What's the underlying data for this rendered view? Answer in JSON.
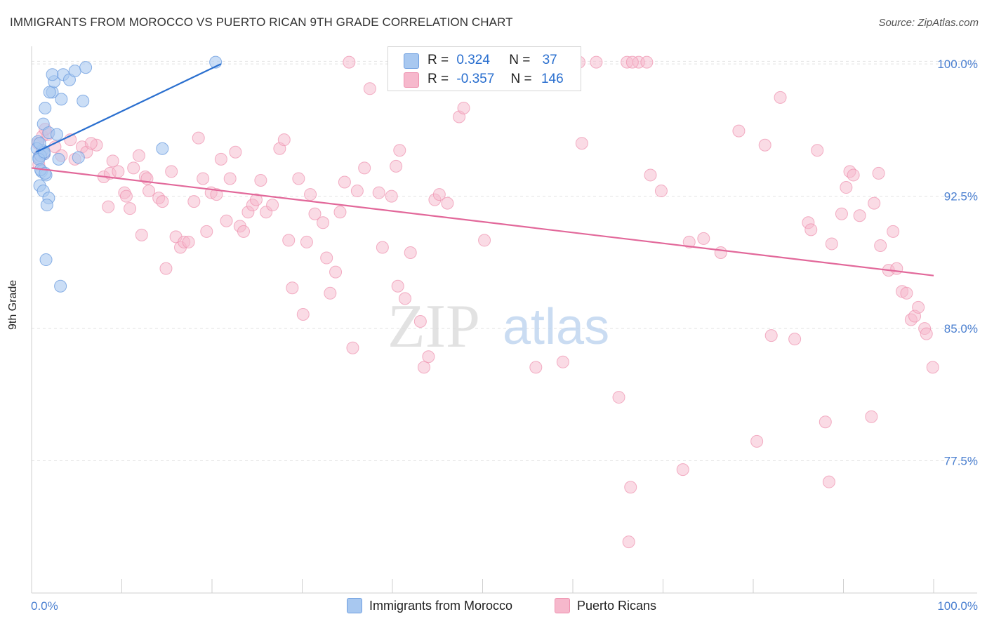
{
  "chart_data": {
    "type": "scatter",
    "title": "IMMIGRANTS FROM MOROCCO VS PUERTO RICAN 9TH GRADE CORRELATION CHART",
    "source": "Source: ZipAtlas.com",
    "xlabel": "",
    "ylabel": "9th Grade",
    "xlim": [
      0,
      100
    ],
    "ylim": [
      70.0,
      101.0
    ],
    "x_tick_labels": [
      "0.0%",
      "100.0%"
    ],
    "y_tick_values": [
      77.5,
      85.0,
      92.5,
      100.0
    ],
    "y_tick_labels": [
      "77.5%",
      "85.0%",
      "92.5%",
      "100.0%"
    ],
    "watermark": {
      "zip": "ZIP",
      "atlas": "atlas"
    },
    "legend": {
      "r_label": "R =",
      "n_label": "N =",
      "entries": [
        {
          "name": "Immigrants from Morocco",
          "r": "0.324",
          "n": "37"
        },
        {
          "name": "Puerto Ricans",
          "r": "-0.357",
          "n": "146"
        }
      ]
    },
    "colors": {
      "blue_fill": "#a8c8f0",
      "blue_edge": "#6f9fe0",
      "blue_line": "#2a6fcf",
      "pink_fill": "#f6b8cc",
      "pink_edge": "#ee90ae",
      "pink_line": "#e2689a",
      "axis_text": "#4a7fd0"
    },
    "series": [
      {
        "name": "Immigrants from Morocco",
        "trend": {
          "x": [
            0.5,
            21
          ],
          "y": [
            95.0,
            100.0
          ]
        },
        "points": [
          [
            0.7,
            95.6
          ],
          [
            1.2,
            95.1
          ],
          [
            0.8,
            94.7
          ],
          [
            0.6,
            95.2
          ],
          [
            1.4,
            94.9
          ],
          [
            1.0,
            94.8
          ],
          [
            1.1,
            93.9
          ],
          [
            1.6,
            93.7
          ],
          [
            0.9,
            93.1
          ],
          [
            1.3,
            92.8
          ],
          [
            1.9,
            92.4
          ],
          [
            1.7,
            92.0
          ],
          [
            1.6,
            88.9
          ],
          [
            3.2,
            87.4
          ],
          [
            1.5,
            97.5
          ],
          [
            2.3,
            98.4
          ],
          [
            2.0,
            98.4
          ],
          [
            2.5,
            99.0
          ],
          [
            2.3,
            99.4
          ],
          [
            3.5,
            99.4
          ],
          [
            4.2,
            99.1
          ],
          [
            4.8,
            99.6
          ],
          [
            6.0,
            99.8
          ],
          [
            1.3,
            96.6
          ],
          [
            1.9,
            96.1
          ],
          [
            2.8,
            96.0
          ],
          [
            3.3,
            98.0
          ],
          [
            5.7,
            97.9
          ],
          [
            5.2,
            94.7
          ],
          [
            3.0,
            94.6
          ],
          [
            14.5,
            95.2
          ],
          [
            20.4,
            100.1
          ],
          [
            0.8,
            94.6
          ],
          [
            1.4,
            95.0
          ],
          [
            1.0,
            94.0
          ],
          [
            1.5,
            93.8
          ],
          [
            0.9,
            95.5
          ]
        ]
      },
      {
        "name": "Puerto Ricans",
        "trend": {
          "x": [
            0,
            100
          ],
          "y": [
            94.1,
            88.0
          ]
        },
        "points": [
          [
            0.7,
            95.5
          ],
          [
            1.2,
            95.9
          ],
          [
            0.9,
            94.8
          ],
          [
            1.4,
            94.9
          ],
          [
            1.8,
            96.0
          ],
          [
            1.5,
            96.3
          ],
          [
            0.8,
            94.3
          ],
          [
            2.6,
            95.3
          ],
          [
            3.3,
            94.8
          ],
          [
            4.3,
            95.7
          ],
          [
            4.8,
            94.6
          ],
          [
            5.6,
            95.3
          ],
          [
            6.1,
            95.0
          ],
          [
            7.2,
            95.4
          ],
          [
            6.6,
            95.5
          ],
          [
            8.5,
            91.9
          ],
          [
            8.0,
            93.6
          ],
          [
            8.7,
            93.8
          ],
          [
            9.0,
            94.5
          ],
          [
            9.6,
            93.9
          ],
          [
            10.3,
            92.7
          ],
          [
            10.5,
            92.5
          ],
          [
            10.9,
            91.8
          ],
          [
            11.3,
            94.1
          ],
          [
            11.9,
            94.8
          ],
          [
            12.2,
            90.3
          ],
          [
            12.6,
            93.6
          ],
          [
            12.8,
            93.5
          ],
          [
            13.0,
            92.8
          ],
          [
            14.1,
            92.4
          ],
          [
            14.5,
            92.2
          ],
          [
            14.9,
            88.4
          ],
          [
            15.5,
            93.9
          ],
          [
            16.0,
            90.2
          ],
          [
            16.5,
            89.6
          ],
          [
            16.9,
            89.9
          ],
          [
            17.4,
            89.9
          ],
          [
            18.0,
            92.2
          ],
          [
            18.5,
            95.8
          ],
          [
            19.0,
            93.5
          ],
          [
            19.4,
            90.5
          ],
          [
            19.9,
            92.7
          ],
          [
            20.5,
            92.6
          ],
          [
            21.0,
            94.6
          ],
          [
            21.6,
            91.1
          ],
          [
            22.0,
            93.5
          ],
          [
            22.6,
            95.0
          ],
          [
            23.1,
            90.8
          ],
          [
            23.5,
            90.5
          ],
          [
            24.0,
            91.6
          ],
          [
            24.5,
            92.0
          ],
          [
            24.9,
            92.3
          ],
          [
            25.4,
            93.4
          ],
          [
            26.0,
            91.6
          ],
          [
            26.7,
            92.0
          ],
          [
            27.5,
            95.2
          ],
          [
            28.0,
            95.7
          ],
          [
            28.5,
            90.0
          ],
          [
            28.9,
            87.3
          ],
          [
            29.6,
            93.5
          ],
          [
            30.1,
            85.8
          ],
          [
            30.5,
            89.9
          ],
          [
            30.9,
            92.6
          ],
          [
            31.4,
            91.5
          ],
          [
            32.3,
            91.0
          ],
          [
            32.7,
            89.0
          ],
          [
            33.1,
            87.0
          ],
          [
            33.7,
            88.2
          ],
          [
            34.2,
            91.6
          ],
          [
            34.7,
            93.3
          ],
          [
            35.2,
            100.1
          ],
          [
            35.6,
            83.9
          ],
          [
            36.1,
            92.8
          ],
          [
            36.9,
            94.1
          ],
          [
            37.5,
            98.6
          ],
          [
            38.5,
            92.7
          ],
          [
            38.9,
            89.6
          ],
          [
            39.9,
            92.5
          ],
          [
            40.4,
            94.2
          ],
          [
            40.6,
            87.4
          ],
          [
            40.8,
            95.1
          ],
          [
            41.4,
            86.7
          ],
          [
            42.0,
            89.3
          ],
          [
            43.1,
            85.4
          ],
          [
            43.5,
            82.8
          ],
          [
            44.0,
            83.4
          ],
          [
            44.7,
            92.3
          ],
          [
            45.2,
            92.6
          ],
          [
            46.1,
            92.1
          ],
          [
            47.4,
            97.0
          ],
          [
            47.9,
            97.5
          ],
          [
            48.9,
            100.1
          ],
          [
            50.2,
            90.0
          ],
          [
            52.2,
            100.1
          ],
          [
            53.1,
            100.1
          ],
          [
            55.9,
            82.8
          ],
          [
            58.9,
            83.1
          ],
          [
            59.7,
            100.1
          ],
          [
            60.7,
            100.1
          ],
          [
            61.0,
            95.5
          ],
          [
            62.6,
            100.1
          ],
          [
            65.1,
            81.1
          ],
          [
            66.0,
            100.1
          ],
          [
            67.3,
            100.1
          ],
          [
            66.4,
            76.0
          ],
          [
            66.2,
            72.9
          ],
          [
            66.6,
            100.1
          ],
          [
            68.2,
            100.1
          ],
          [
            68.6,
            93.7
          ],
          [
            69.8,
            92.8
          ],
          [
            72.2,
            77.0
          ],
          [
            72.9,
            89.9
          ],
          [
            74.5,
            90.1
          ],
          [
            76.4,
            89.3
          ],
          [
            78.4,
            96.2
          ],
          [
            80.4,
            78.6
          ],
          [
            81.3,
            95.4
          ],
          [
            82.0,
            84.6
          ],
          [
            83.0,
            98.1
          ],
          [
            84.6,
            84.4
          ],
          [
            86.1,
            91.0
          ],
          [
            86.4,
            90.6
          ],
          [
            87.1,
            95.1
          ],
          [
            88.0,
            79.7
          ],
          [
            88.4,
            76.3
          ],
          [
            88.7,
            89.8
          ],
          [
            89.8,
            91.5
          ],
          [
            90.3,
            93.0
          ],
          [
            90.7,
            93.9
          ],
          [
            91.1,
            93.7
          ],
          [
            91.8,
            91.4
          ],
          [
            93.1,
            80.0
          ],
          [
            93.4,
            92.1
          ],
          [
            93.9,
            93.8
          ],
          [
            94.1,
            89.7
          ],
          [
            95.0,
            88.3
          ],
          [
            95.5,
            90.5
          ],
          [
            95.9,
            88.4
          ],
          [
            96.5,
            87.1
          ],
          [
            97.0,
            87.0
          ],
          [
            97.5,
            85.5
          ],
          [
            97.9,
            85.7
          ],
          [
            98.3,
            86.2
          ],
          [
            99.0,
            85.0
          ],
          [
            99.2,
            84.7
          ],
          [
            99.9,
            82.8
          ]
        ]
      }
    ]
  }
}
